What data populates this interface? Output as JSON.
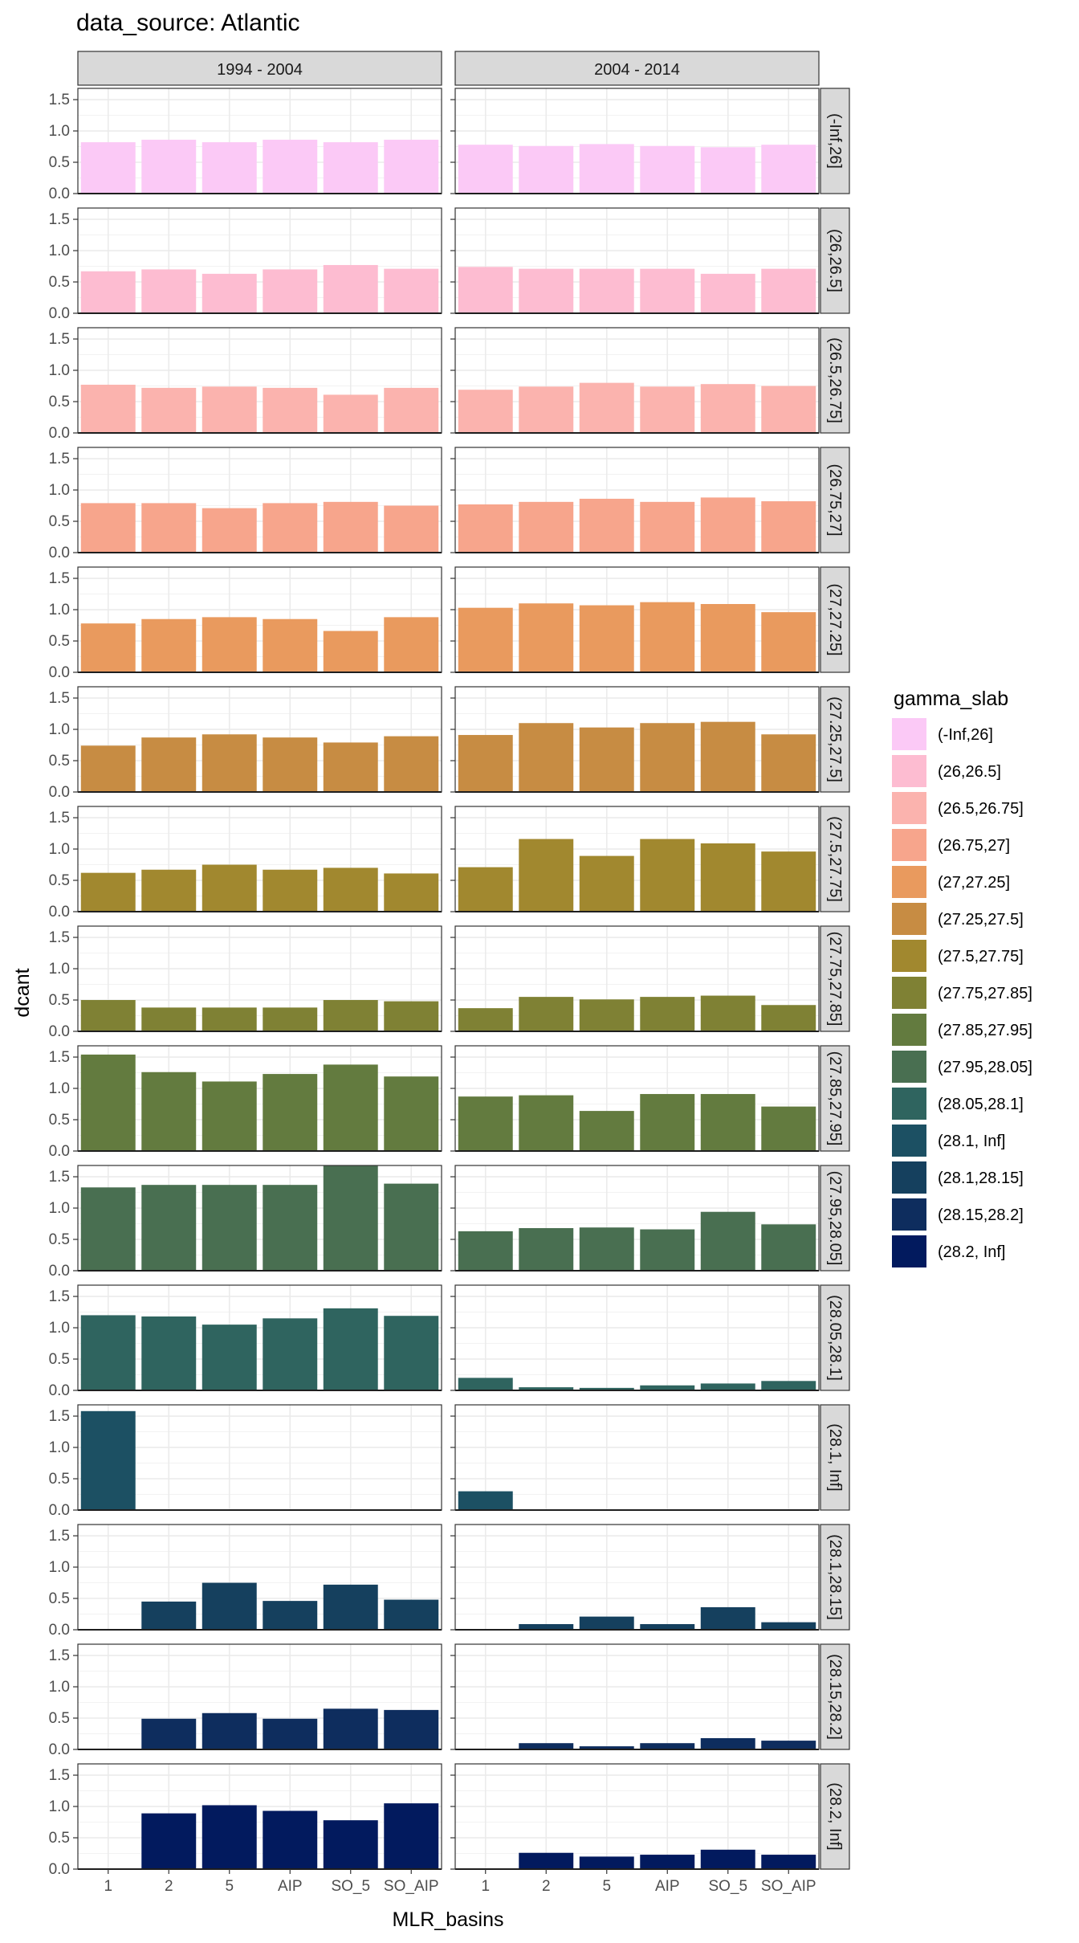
{
  "title": "data_source: Atlantic",
  "chart_data": {
    "type": "bar",
    "facet_cols": [
      "1994 - 2004",
      "2004 - 2014"
    ],
    "categories": [
      "1",
      "2",
      "5",
      "AIP",
      "SO_5",
      "SO_AIP"
    ],
    "xlabel": "MLR_basins",
    "ylabel": "dcant",
    "ylim": [
      0,
      1.68
    ],
    "yticks": [
      "0.0",
      "0.5",
      "1.0",
      "1.5"
    ],
    "ytick_values": [
      0,
      0.5,
      1.0,
      1.5
    ],
    "grid": true,
    "legend_position": "right",
    "legend_title": "gamma_slab",
    "rows": [
      {
        "label": "(-Inf,26]",
        "color": "#FBC9F6",
        "values": [
          [
            0.82,
            0.86,
            0.82,
            0.86,
            0.82,
            0.86
          ],
          [
            0.78,
            0.76,
            0.79,
            0.76,
            0.74,
            0.78
          ]
        ]
      },
      {
        "label": "(26,26.5]",
        "color": "#FDBCD1",
        "values": [
          [
            0.67,
            0.7,
            0.63,
            0.7,
            0.77,
            0.71
          ],
          [
            0.74,
            0.71,
            0.71,
            0.71,
            0.63,
            0.71
          ]
        ]
      },
      {
        "label": "(26.5,26.75]",
        "color": "#FBB3AE",
        "values": [
          [
            0.77,
            0.72,
            0.74,
            0.72,
            0.61,
            0.72
          ],
          [
            0.69,
            0.74,
            0.8,
            0.74,
            0.78,
            0.75
          ]
        ]
      },
      {
        "label": "(26.75,27]",
        "color": "#F7A58C",
        "values": [
          [
            0.79,
            0.79,
            0.71,
            0.79,
            0.81,
            0.75
          ],
          [
            0.77,
            0.81,
            0.86,
            0.81,
            0.88,
            0.82
          ]
        ]
      },
      {
        "label": "(27,27.25]",
        "color": "#E99A5E",
        "values": [
          [
            0.78,
            0.85,
            0.88,
            0.85,
            0.66,
            0.88
          ],
          [
            1.03,
            1.1,
            1.07,
            1.12,
            1.09,
            0.96
          ]
        ]
      },
      {
        "label": "(27.25,27.5]",
        "color": "#C78C43",
        "values": [
          [
            0.74,
            0.87,
            0.92,
            0.87,
            0.79,
            0.89
          ],
          [
            0.91,
            1.1,
            1.03,
            1.1,
            1.12,
            0.92
          ]
        ]
      },
      {
        "label": "(27.5,27.75]",
        "color": "#A1882F",
        "values": [
          [
            0.62,
            0.67,
            0.75,
            0.67,
            0.7,
            0.61
          ],
          [
            0.71,
            1.16,
            0.89,
            1.16,
            1.09,
            0.96
          ]
        ]
      },
      {
        "label": "(27.75,27.85]",
        "color": "#7F8134",
        "values": [
          [
            0.5,
            0.38,
            0.38,
            0.38,
            0.5,
            0.48
          ],
          [
            0.37,
            0.55,
            0.51,
            0.55,
            0.57,
            0.42
          ]
        ]
      },
      {
        "label": "(27.85,27.95]",
        "color": "#637B3F",
        "values": [
          [
            1.54,
            1.26,
            1.11,
            1.23,
            1.38,
            1.19
          ],
          [
            0.87,
            0.89,
            0.64,
            0.91,
            0.91,
            0.71
          ]
        ]
      },
      {
        "label": "(27.95,28.05]",
        "color": "#496F51",
        "values": [
          [
            1.33,
            1.37,
            1.37,
            1.37,
            1.68,
            1.39
          ],
          [
            0.63,
            0.68,
            0.69,
            0.66,
            0.94,
            0.74
          ]
        ]
      },
      {
        "label": "(28.05,28.1]",
        "color": "#2F645F",
        "values": [
          [
            1.2,
            1.18,
            1.05,
            1.15,
            1.31,
            1.19
          ],
          [
            0.2,
            0.05,
            0.04,
            0.08,
            0.11,
            0.15
          ]
        ]
      },
      {
        "label": "(28.1, Inf]",
        "color": "#1C5063",
        "values": [
          [
            1.58,
            0,
            0,
            0,
            0,
            0
          ],
          [
            0.3,
            0,
            0,
            0,
            0,
            0
          ]
        ]
      },
      {
        "label": "(28.1,28.15]",
        "color": "#15405E",
        "values": [
          [
            0,
            0.45,
            0.75,
            0.46,
            0.72,
            0.48
          ],
          [
            0,
            0.09,
            0.21,
            0.09,
            0.36,
            0.12
          ]
        ]
      },
      {
        "label": "(28.15,28.2]",
        "color": "#0E2D5E",
        "values": [
          [
            0,
            0.49,
            0.58,
            0.49,
            0.65,
            0.63
          ],
          [
            0,
            0.1,
            0.05,
            0.1,
            0.18,
            0.14
          ]
        ]
      },
      {
        "label": "(28.2, Inf]",
        "color": "#021A5E",
        "values": [
          [
            0,
            0.89,
            1.02,
            0.93,
            0.78,
            1.05
          ],
          [
            0,
            0.26,
            0.2,
            0.23,
            0.31,
            0.23
          ]
        ]
      }
    ]
  }
}
